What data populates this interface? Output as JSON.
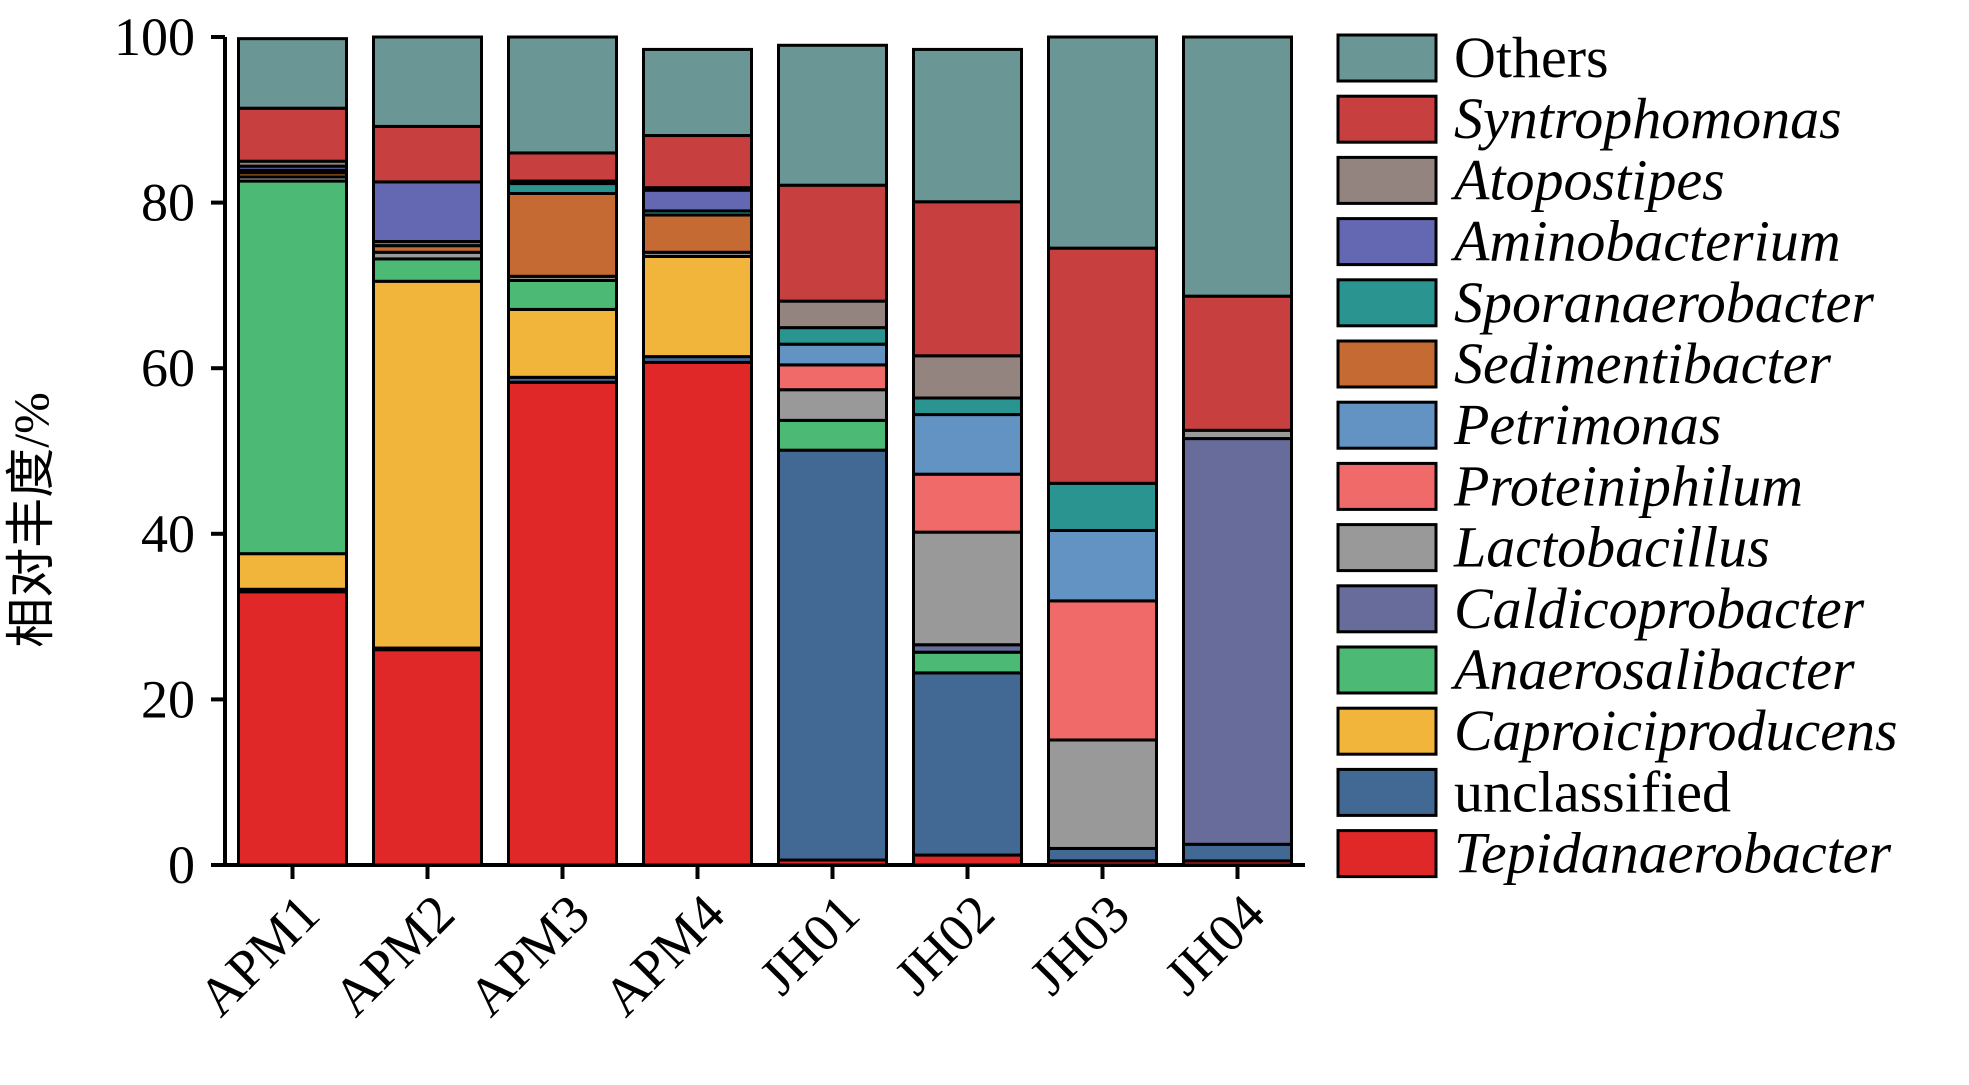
{
  "chart_data": {
    "type": "bar",
    "stacked": true,
    "ylabel": "相对丰度/%",
    "xlabel": "",
    "ylim": [
      0,
      100
    ],
    "yticks": [
      0,
      20,
      40,
      60,
      80,
      100
    ],
    "categories": [
      "APM1",
      "APM2",
      "APM3",
      "APM4",
      "JH01",
      "JH02",
      "JH03",
      "JH04"
    ],
    "legend_position": "right",
    "series": [
      {
        "name": "Tepidanaerobacter",
        "italic": true,
        "color": "#e02828",
        "values": [
          33.0,
          26.0,
          58.3,
          60.7,
          0.6,
          1.2,
          0.5,
          0.5
        ]
      },
      {
        "name": "unclassified",
        "italic": false,
        "color": "#426994",
        "values": [
          0.3,
          0.2,
          0.6,
          0.7,
          49.5,
          22.0,
          1.5,
          2.0
        ]
      },
      {
        "name": "Caproiciproducens",
        "italic": true,
        "color": "#f2b53c",
        "values": [
          4.3,
          44.3,
          8.2,
          12.1,
          0.0,
          0.0,
          0.0,
          0.0
        ]
      },
      {
        "name": "Anaerosalibacter",
        "italic": true,
        "color": "#4cba74",
        "values": [
          45.0,
          2.7,
          3.5,
          0.0,
          3.6,
          2.5,
          0.0,
          0.0
        ]
      },
      {
        "name": "Caldicoprobacter",
        "italic": true,
        "color": "#686c9a",
        "values": [
          0.0,
          0.0,
          0.0,
          0.0,
          0.0,
          0.9,
          0.0,
          49.0
        ]
      },
      {
        "name": "Lactobacillus",
        "italic": true,
        "color": "#999999",
        "values": [
          0.5,
          0.8,
          0.5,
          0.5,
          3.7,
          13.6,
          13.1,
          1.0
        ]
      },
      {
        "name": "Proteiniphilum",
        "italic": true,
        "color": "#f06a6a",
        "values": [
          0.0,
          0.0,
          0.0,
          0.0,
          3.0,
          7.0,
          16.8,
          0.0
        ]
      },
      {
        "name": "Petrimonas",
        "italic": true,
        "color": "#6393c2",
        "values": [
          0.0,
          0.0,
          0.0,
          0.0,
          2.5,
          7.2,
          8.5,
          0.0
        ]
      },
      {
        "name": "Sedimentibacter",
        "italic": true,
        "color": "#c46a32",
        "values": [
          0.5,
          0.8,
          10.0,
          4.5,
          0.0,
          0.0,
          0.0,
          0.0
        ]
      },
      {
        "name": "Sporanaerobacter",
        "italic": true,
        "color": "#2a9490",
        "values": [
          0.3,
          0.5,
          1.2,
          0.5,
          2.0,
          2.0,
          5.7,
          0.0
        ]
      },
      {
        "name": "Aminobacterium",
        "italic": true,
        "color": "#6468b2",
        "values": [
          0.5,
          7.2,
          0.0,
          2.5,
          0.0,
          0.0,
          0.0,
          0.0
        ]
      },
      {
        "name": "Atopostipes",
        "italic": true,
        "color": "#948480",
        "values": [
          0.6,
          0.0,
          0.3,
          0.3,
          3.2,
          5.1,
          0.0,
          0.0
        ]
      },
      {
        "name": "Syntrophomonas",
        "italic": true,
        "color": "#c83f40",
        "values": [
          6.4,
          6.7,
          3.4,
          6.3,
          14.0,
          18.6,
          28.4,
          16.2
        ]
      },
      {
        "name": "Others",
        "italic": false,
        "color": "#6a9795",
        "values": [
          8.4,
          10.8,
          14.0,
          10.4,
          16.9,
          18.4,
          25.5,
          31.3
        ]
      }
    ]
  }
}
